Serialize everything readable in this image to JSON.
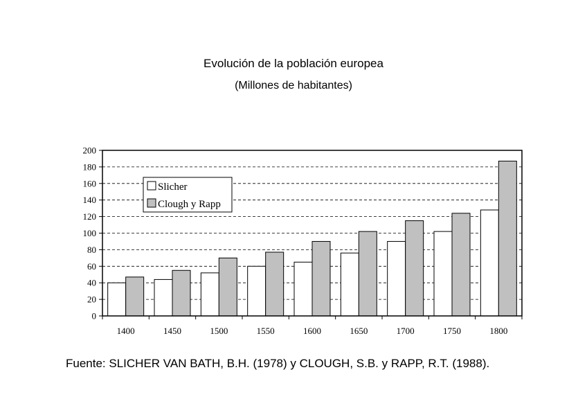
{
  "chart_data": {
    "type": "bar",
    "title": "Evolución de la población europea",
    "subtitle": "(Millones de habitantes)",
    "categories": [
      "1400",
      "1450",
      "1500",
      "1550",
      "1600",
      "1650",
      "1700",
      "1750",
      "1800"
    ],
    "series": [
      {
        "name": "Slicher",
        "color": "#ffffff",
        "values": [
          40,
          44,
          52,
          60,
          65,
          76,
          90,
          102,
          128
        ]
      },
      {
        "name": "Clough y Rapp",
        "color": "#c0c0c0",
        "values": [
          47,
          55,
          70,
          77,
          90,
          102,
          115,
          124,
          187
        ]
      }
    ],
    "ylim": [
      0,
      200
    ],
    "yticks": [
      0,
      20,
      40,
      60,
      80,
      100,
      120,
      140,
      160,
      180,
      200
    ],
    "grid": "dashed horizontal",
    "legend_position": "top-left"
  },
  "source": "Fuente: SLICHER VAN BATH, B.H. (1978) y CLOUGH, S.B. y RAPP, R.T. (1988)."
}
